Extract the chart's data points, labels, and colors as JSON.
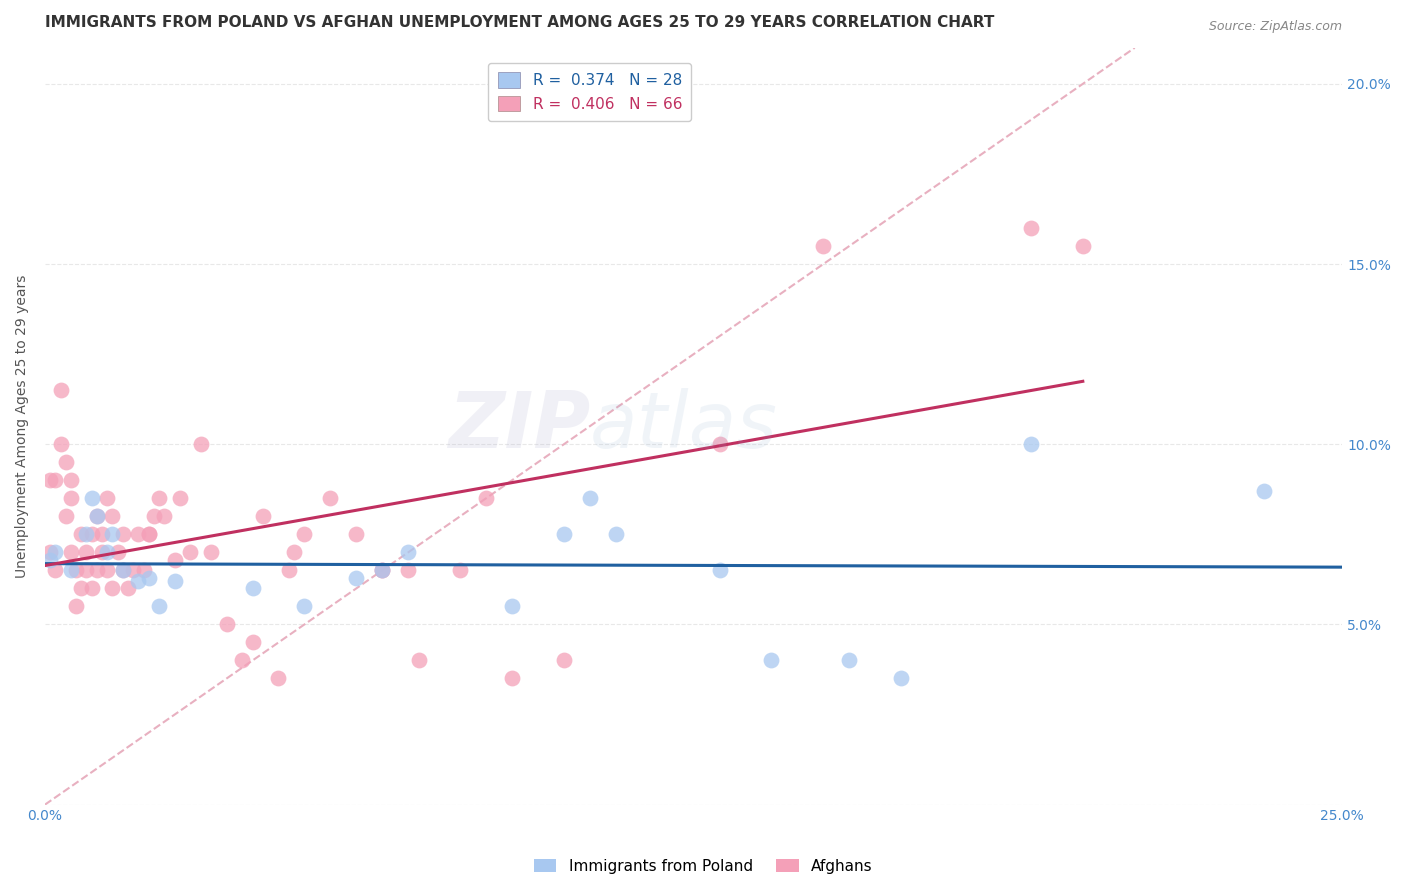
{
  "title": "IMMIGRANTS FROM POLAND VS AFGHAN UNEMPLOYMENT AMONG AGES 25 TO 29 YEARS CORRELATION CHART",
  "source": "Source: ZipAtlas.com",
  "ylabel": "Unemployment Among Ages 25 to 29 years",
  "xlim": [
    0,
    0.25
  ],
  "ylim": [
    0,
    0.21
  ],
  "x_ticks": [
    0.0,
    0.05,
    0.1,
    0.15,
    0.2,
    0.25
  ],
  "y_ticks": [
    0.0,
    0.05,
    0.1,
    0.15,
    0.2
  ],
  "poland_color": "#A8C8F0",
  "afghan_color": "#F4A0B8",
  "poland_line_color": "#2060A0",
  "afghan_line_color": "#C03060",
  "diagonal_color": "#E8B0C0",
  "R_poland": 0.374,
  "N_poland": 28,
  "R_afghan": 0.406,
  "N_afghan": 66,
  "poland_x": [
    0.001,
    0.002,
    0.005,
    0.008,
    0.009,
    0.01,
    0.012,
    0.013,
    0.015,
    0.018,
    0.02,
    0.022,
    0.025,
    0.04,
    0.05,
    0.06,
    0.065,
    0.07,
    0.09,
    0.1,
    0.105,
    0.11,
    0.13,
    0.14,
    0.155,
    0.165,
    0.19,
    0.235
  ],
  "poland_y": [
    0.068,
    0.07,
    0.065,
    0.075,
    0.085,
    0.08,
    0.07,
    0.075,
    0.065,
    0.062,
    0.063,
    0.055,
    0.062,
    0.06,
    0.055,
    0.063,
    0.065,
    0.07,
    0.055,
    0.075,
    0.085,
    0.075,
    0.065,
    0.04,
    0.04,
    0.035,
    0.1,
    0.087
  ],
  "afghan_x": [
    0.001,
    0.001,
    0.002,
    0.002,
    0.003,
    0.003,
    0.004,
    0.004,
    0.005,
    0.005,
    0.005,
    0.006,
    0.006,
    0.007,
    0.007,
    0.008,
    0.008,
    0.009,
    0.009,
    0.01,
    0.01,
    0.011,
    0.011,
    0.012,
    0.012,
    0.013,
    0.013,
    0.014,
    0.015,
    0.015,
    0.016,
    0.017,
    0.018,
    0.019,
    0.02,
    0.02,
    0.021,
    0.022,
    0.023,
    0.025,
    0.026,
    0.028,
    0.03,
    0.032,
    0.035,
    0.038,
    0.04,
    0.042,
    0.045,
    0.047,
    0.048,
    0.05,
    0.055,
    0.06,
    0.065,
    0.065,
    0.07,
    0.072,
    0.08,
    0.085,
    0.09,
    0.1,
    0.13,
    0.15,
    0.19,
    0.2
  ],
  "afghan_y": [
    0.07,
    0.09,
    0.065,
    0.09,
    0.1,
    0.115,
    0.08,
    0.095,
    0.07,
    0.085,
    0.09,
    0.055,
    0.065,
    0.06,
    0.075,
    0.065,
    0.07,
    0.06,
    0.075,
    0.065,
    0.08,
    0.07,
    0.075,
    0.065,
    0.085,
    0.06,
    0.08,
    0.07,
    0.065,
    0.075,
    0.06,
    0.065,
    0.075,
    0.065,
    0.075,
    0.075,
    0.08,
    0.085,
    0.08,
    0.068,
    0.085,
    0.07,
    0.1,
    0.07,
    0.05,
    0.04,
    0.045,
    0.08,
    0.035,
    0.065,
    0.07,
    0.075,
    0.085,
    0.075,
    0.065,
    0.065,
    0.065,
    0.04,
    0.065,
    0.085,
    0.035,
    0.04,
    0.1,
    0.155,
    0.16,
    0.155
  ],
  "background_color": "#FFFFFF",
  "grid_color": "#E8E8E8",
  "title_fontsize": 11,
  "label_fontsize": 10,
  "tick_fontsize": 10,
  "legend_fontsize": 11,
  "watermark_zip": "ZIP",
  "watermark_atlas": "atlas",
  "watermark_alpha": 0.12
}
